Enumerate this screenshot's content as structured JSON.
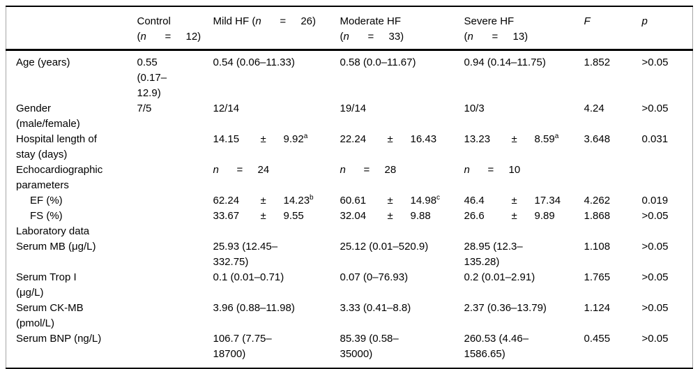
{
  "colors": {
    "text": "#000000",
    "background": "#ffffff",
    "heavy_rule": "#000000",
    "side_border": "#a6a6a6"
  },
  "table": {
    "plus_minus_sign": "±",
    "equals_sign": "=",
    "n_variable": "n",
    "columns": [
      {
        "text": ""
      },
      {
        "text": "Control",
        "n": "12",
        "two_line": true
      },
      {
        "text": "Mild HF",
        "n": "26",
        "two_line": false
      },
      {
        "text": "Moderate HF",
        "n": "33",
        "two_line": true
      },
      {
        "text": "Severe HF",
        "n": "13",
        "two_line": true
      },
      {
        "text": "F",
        "italic": true
      },
      {
        "text": "p",
        "italic": true
      }
    ],
    "rows": [
      {
        "label": "Age (years)",
        "cells": [
          "0.55\n(0.17–\n12.9)",
          "0.54 (0.06–11.33)",
          "0.58 (0.0–11.67)",
          "0.94 (0.14–11.75)",
          "1.852",
          ">0.05"
        ]
      },
      {
        "label": "Gender\n(male/female)",
        "cells": [
          "7/5",
          "12/14",
          "19/14",
          "10/3",
          "4.24",
          ">0.05"
        ]
      },
      {
        "label": "Hospital length of\nstay (days)",
        "cells": [
          "",
          {
            "mean": "14.15",
            "sd": "9.92",
            "sup": "a"
          },
          {
            "mean": "22.24",
            "sd": "16.43"
          },
          {
            "mean": "13.23",
            "sd": "8.59",
            "sup": "a"
          },
          "3.648",
          "0.031"
        ]
      },
      {
        "label": "Echocardiographic\nparameters",
        "cells": [
          "",
          {
            "n": "24"
          },
          {
            "n": "28"
          },
          {
            "n": "10"
          },
          "",
          ""
        ]
      },
      {
        "label": "EF (%)",
        "indent": true,
        "cells": [
          "",
          {
            "mean": "62.24",
            "sd": "14.23",
            "sup": "b"
          },
          {
            "mean": "60.61",
            "sd": "14.98",
            "sup": "c"
          },
          {
            "mean": "46.4",
            "sd": "17.34"
          },
          "4.262",
          "0.019"
        ]
      },
      {
        "label": "FS (%)",
        "indent": true,
        "cells": [
          "",
          {
            "mean": "33.67",
            "sd": "9.55"
          },
          {
            "mean": "32.04",
            "sd": "9.88"
          },
          {
            "mean": "26.6",
            "sd": "9.89"
          },
          "1.868",
          ">0.05"
        ]
      },
      {
        "label": "Laboratory data",
        "cells": [
          "",
          "",
          "",
          "",
          "",
          ""
        ]
      },
      {
        "label": "Serum MB (μg/L)",
        "cells": [
          "",
          "25.93 (12.45–\n332.75)",
          "25.12 (0.01–520.9)",
          "28.95 (12.3–\n135.28)",
          "1.108",
          ">0.05"
        ]
      },
      {
        "label": "Serum Trop I\n(μg/L)",
        "cells": [
          "",
          "0.1 (0.01–0.71)",
          "0.07 (0–76.93)",
          "0.2 (0.01–2.91)",
          "1.765",
          ">0.05"
        ]
      },
      {
        "label": "Serum CK-MB\n(pmol/L)",
        "cells": [
          "",
          "3.96 (0.88–11.98)",
          "3.33 (0.41–8.8)",
          "2.37 (0.36–13.79)",
          "1.124",
          ">0.05"
        ]
      },
      {
        "label": "Serum BNP (ng/L)",
        "cells": [
          "",
          "106.7 (7.75–\n18700)",
          "85.39 (0.58–\n35000)",
          "260.53 (4.46–\n1586.65)",
          "0.455",
          ">0.05"
        ]
      }
    ]
  }
}
